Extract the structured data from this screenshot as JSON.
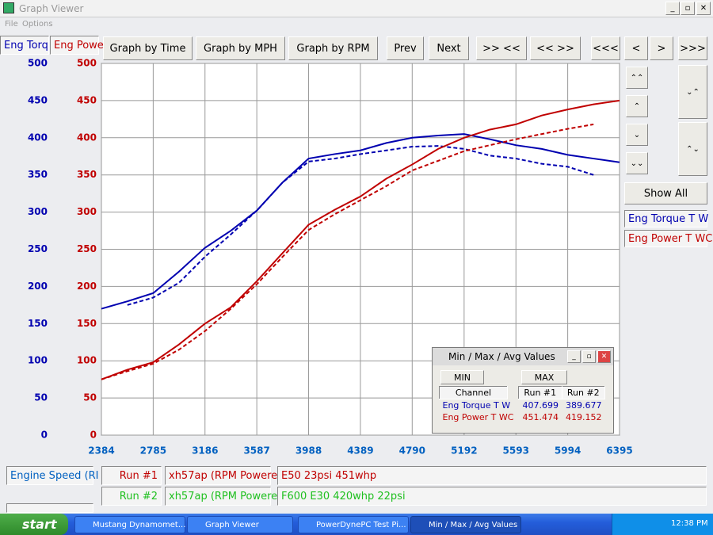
{
  "window": {
    "title": "Graph Viewer",
    "menu": [
      "File",
      "Options"
    ]
  },
  "axis_tabs": [
    "Eng Torq",
    "Eng Powe"
  ],
  "toolbar": [
    "Graph by Time",
    "Graph by MPH",
    "Graph by RPM",
    "Prev",
    "Next",
    ">> <<",
    "<< >>",
    "<<<",
    "<",
    ">",
    ">>>"
  ],
  "side": {
    "show_all": "Show All",
    "channels": [
      "Eng Torque T W",
      "Eng Power T WC"
    ]
  },
  "chart_data": {
    "type": "line",
    "xlim": [
      2384,
      6395
    ],
    "xticks": [
      2384,
      2785,
      3186,
      3587,
      3988,
      4389,
      4790,
      5192,
      5593,
      5994,
      6395
    ],
    "ylim": [
      0,
      500
    ],
    "yticks": [
      0,
      50,
      100,
      150,
      200,
      250,
      300,
      350,
      400,
      450,
      500
    ],
    "y2lim": [
      0,
      500
    ],
    "y2ticks": [
      0,
      50,
      100,
      150,
      200,
      250,
      300,
      350,
      400,
      450,
      500
    ],
    "grid": true,
    "x": [
      2384,
      2585,
      2785,
      2985,
      3186,
      3386,
      3587,
      3787,
      3988,
      4189,
      4389,
      4590,
      4790,
      4991,
      5192,
      5392,
      5593,
      5793,
      5994,
      6194,
      6395
    ],
    "series": [
      {
        "color": "#0000b0",
        "dashed": false,
        "values": [
          170,
          180,
          191,
          220,
          252,
          275,
          302,
          340,
          372,
          378,
          383,
          393,
          400,
          403,
          405,
          398,
          390,
          385,
          377,
          372,
          367
        ]
      },
      {
        "color": "#0000b0",
        "dashed": true,
        "values": [
          null,
          175,
          185,
          205,
          240,
          270,
          302,
          340,
          368,
          372,
          378,
          383,
          388,
          389,
          385,
          376,
          372,
          365,
          361,
          350,
          null
        ]
      },
      {
        "color": "#c00000",
        "dashed": false,
        "axis": "y2",
        "values": [
          75,
          88,
          98,
          122,
          150,
          172,
          207,
          245,
          283,
          303,
          321,
          345,
          364,
          385,
          400,
          411,
          418,
          430,
          438,
          445,
          450
        ]
      },
      {
        "color": "#c00000",
        "dashed": true,
        "axis": "y2",
        "values": [
          75,
          86,
          96,
          115,
          140,
          170,
          203,
          240,
          276,
          297,
          316,
          335,
          356,
          369,
          382,
          390,
          398,
          405,
          412,
          418,
          null
        ]
      }
    ]
  },
  "dialog": {
    "title": "Min / Max / Avg Values",
    "buttons": [
      "MIN",
      "MAX"
    ],
    "headers": [
      "Channel",
      "Run #1",
      "Run #2"
    ],
    "rows": [
      [
        "Eng Torque T W",
        "407.699",
        "389.677"
      ],
      [
        "Eng Power T WC",
        "451.474",
        "419.152"
      ]
    ]
  },
  "bottom": {
    "channel": "Engine Speed (RI",
    "runs": [
      {
        "label": "Run #1",
        "file": "xh57ap (RPM Powere",
        "note": "E50 23psi 451whp"
      },
      {
        "label": "Run #2",
        "file": "xh57ap (RPM Powere",
        "note": "F600 E30 420whp 22psi"
      }
    ]
  },
  "taskbar": {
    "start": "start",
    "items": [
      "Mustang Dynamomet...",
      "Graph Viewer",
      "PowerDynePC Test Pi...",
      "Min / Max / Avg Values"
    ],
    "clock": "12:38 PM"
  }
}
